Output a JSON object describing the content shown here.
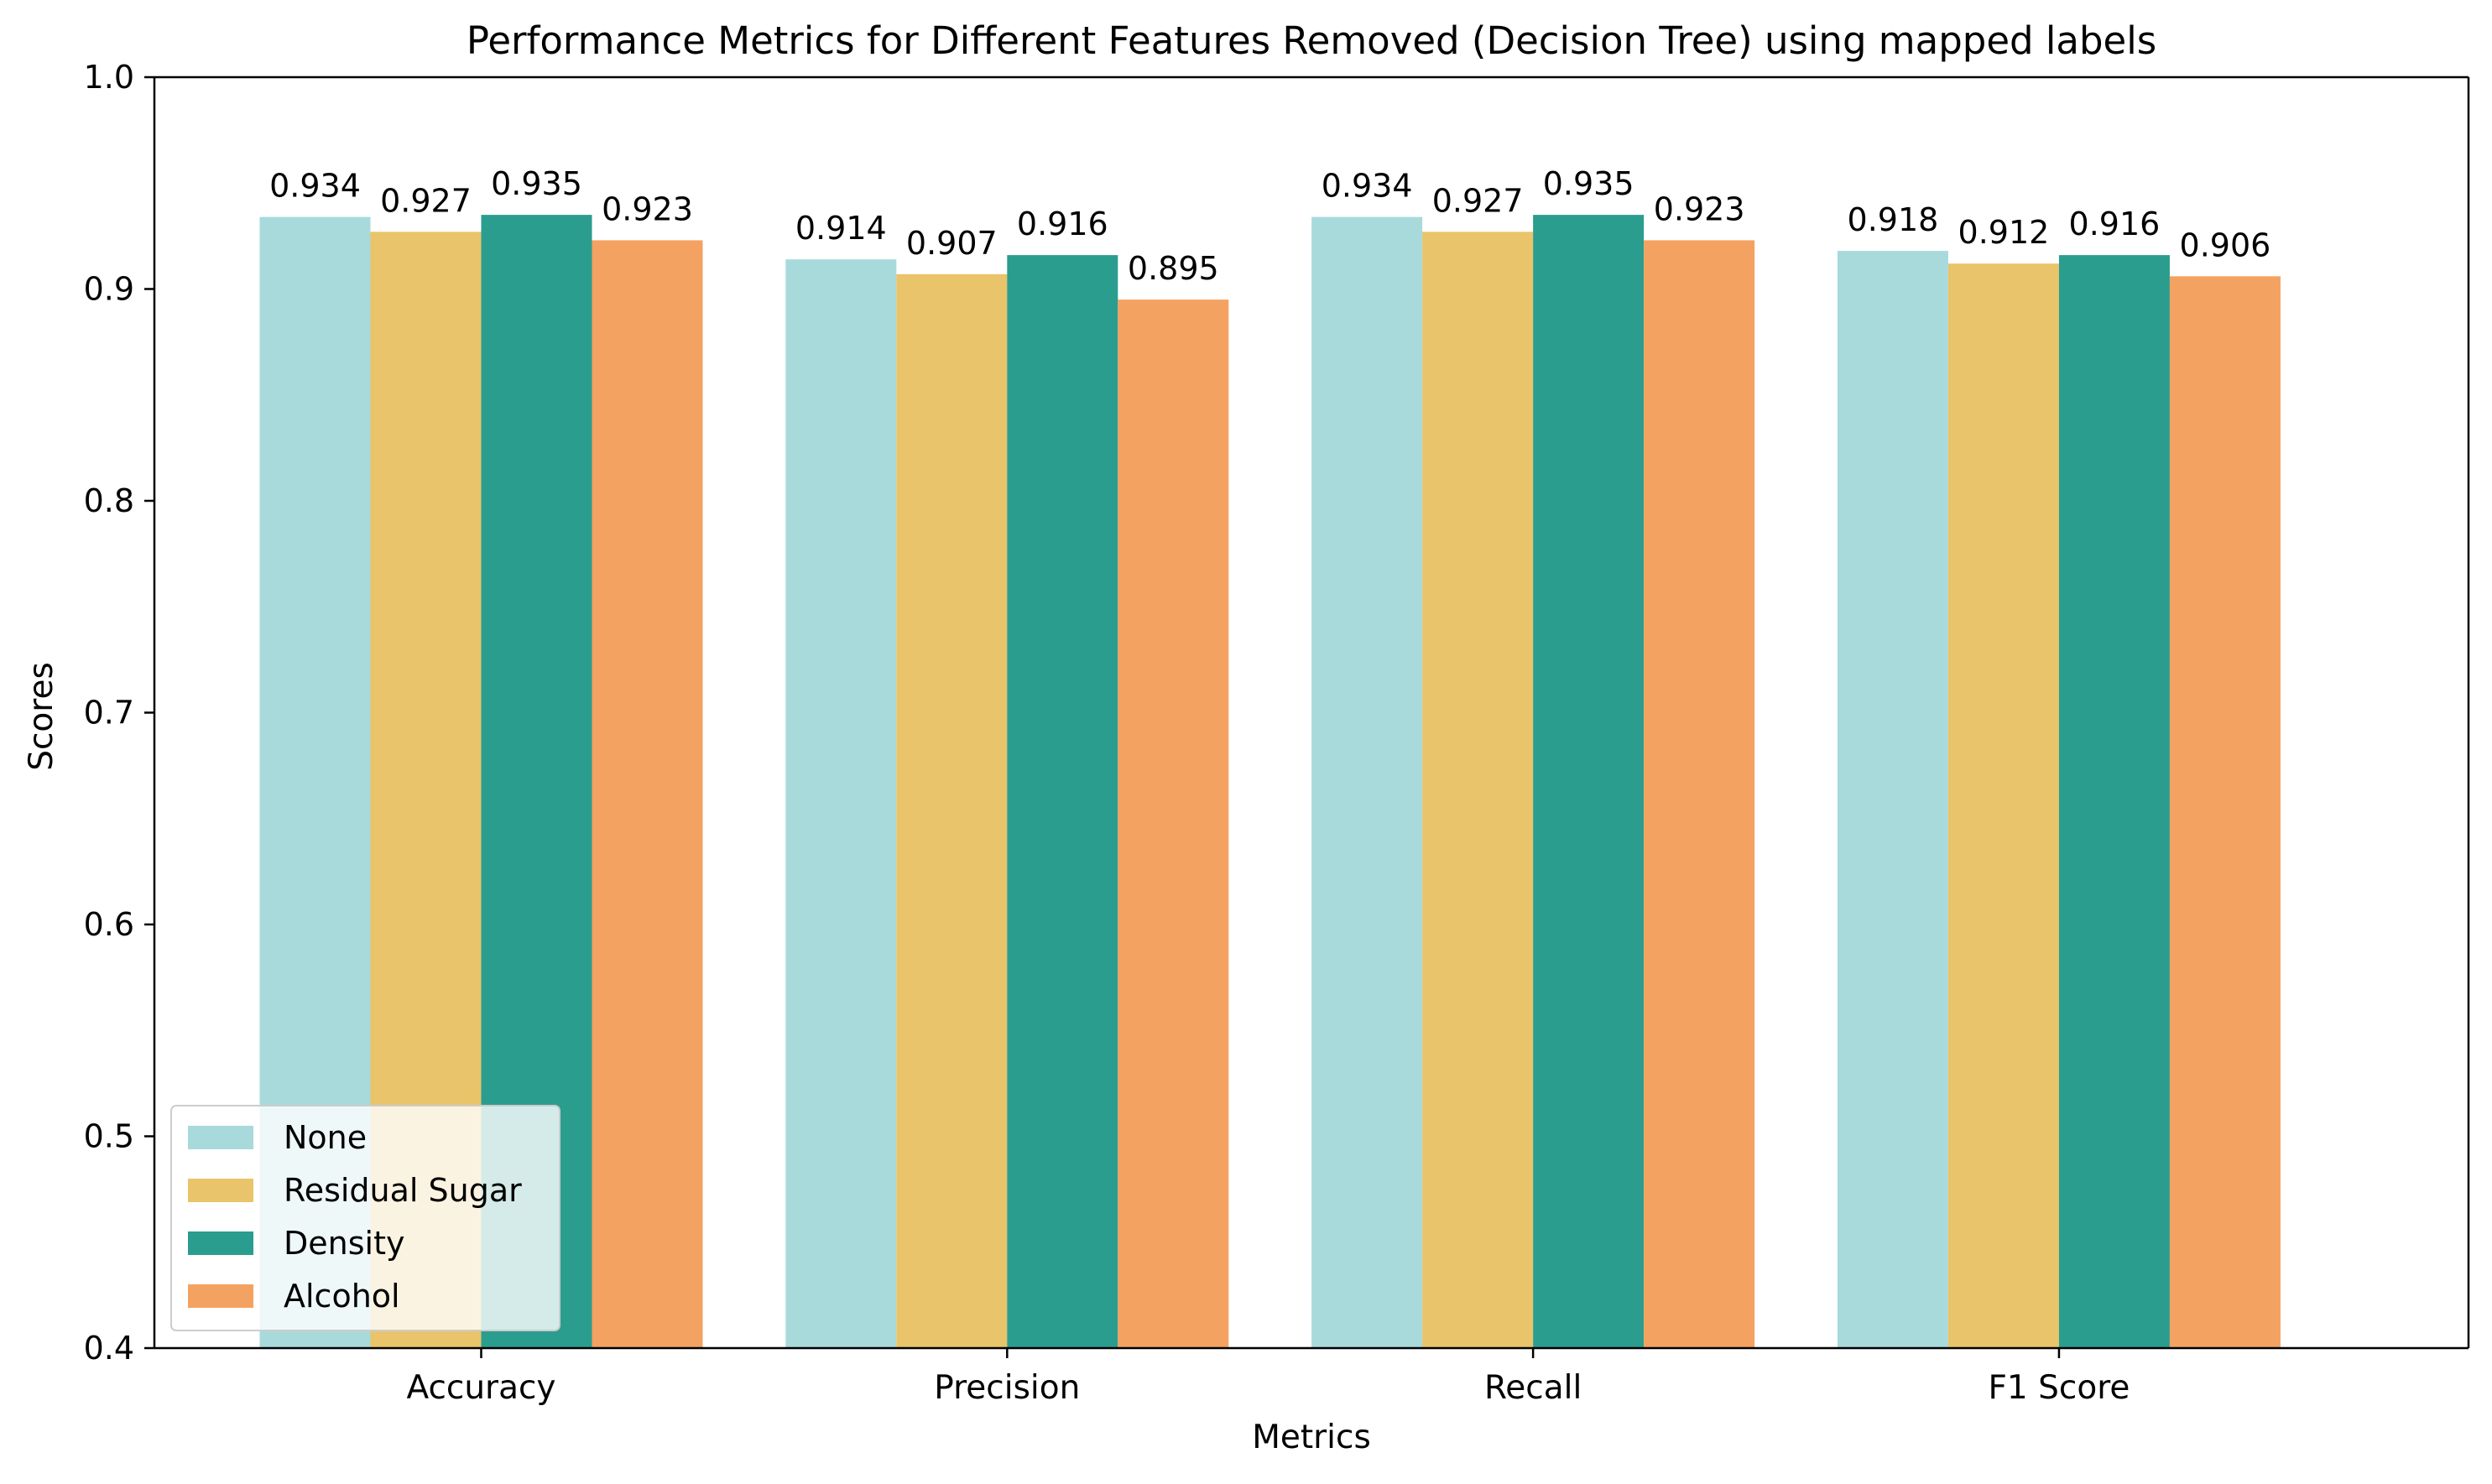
{
  "chart_data": {
    "type": "bar",
    "title": "Performance Metrics for Different Features Removed (Decision Tree) using mapped labels",
    "xlabel": "Metrics",
    "ylabel": "Scores",
    "categories": [
      "Accuracy",
      "Precision",
      "Recall",
      "F1 Score"
    ],
    "ylim": [
      0.4,
      1.0
    ],
    "yticks": [
      "0.4",
      "0.5",
      "0.6",
      "0.7",
      "0.8",
      "0.9",
      "1.0"
    ],
    "grid": false,
    "legend_position": "lower-left",
    "series": [
      {
        "name": "None",
        "color": "#a8dadc",
        "values": [
          0.934,
          0.914,
          0.934,
          0.918
        ]
      },
      {
        "name": "Residual Sugar",
        "color": "#e9c46a",
        "values": [
          0.927,
          0.907,
          0.927,
          0.912
        ]
      },
      {
        "name": "Density",
        "color": "#2a9d8f",
        "values": [
          0.935,
          0.916,
          0.935,
          0.916
        ]
      },
      {
        "name": "Alcohol",
        "color": "#f4a261",
        "values": [
          0.923,
          0.895,
          0.923,
          0.906
        ]
      }
    ]
  }
}
